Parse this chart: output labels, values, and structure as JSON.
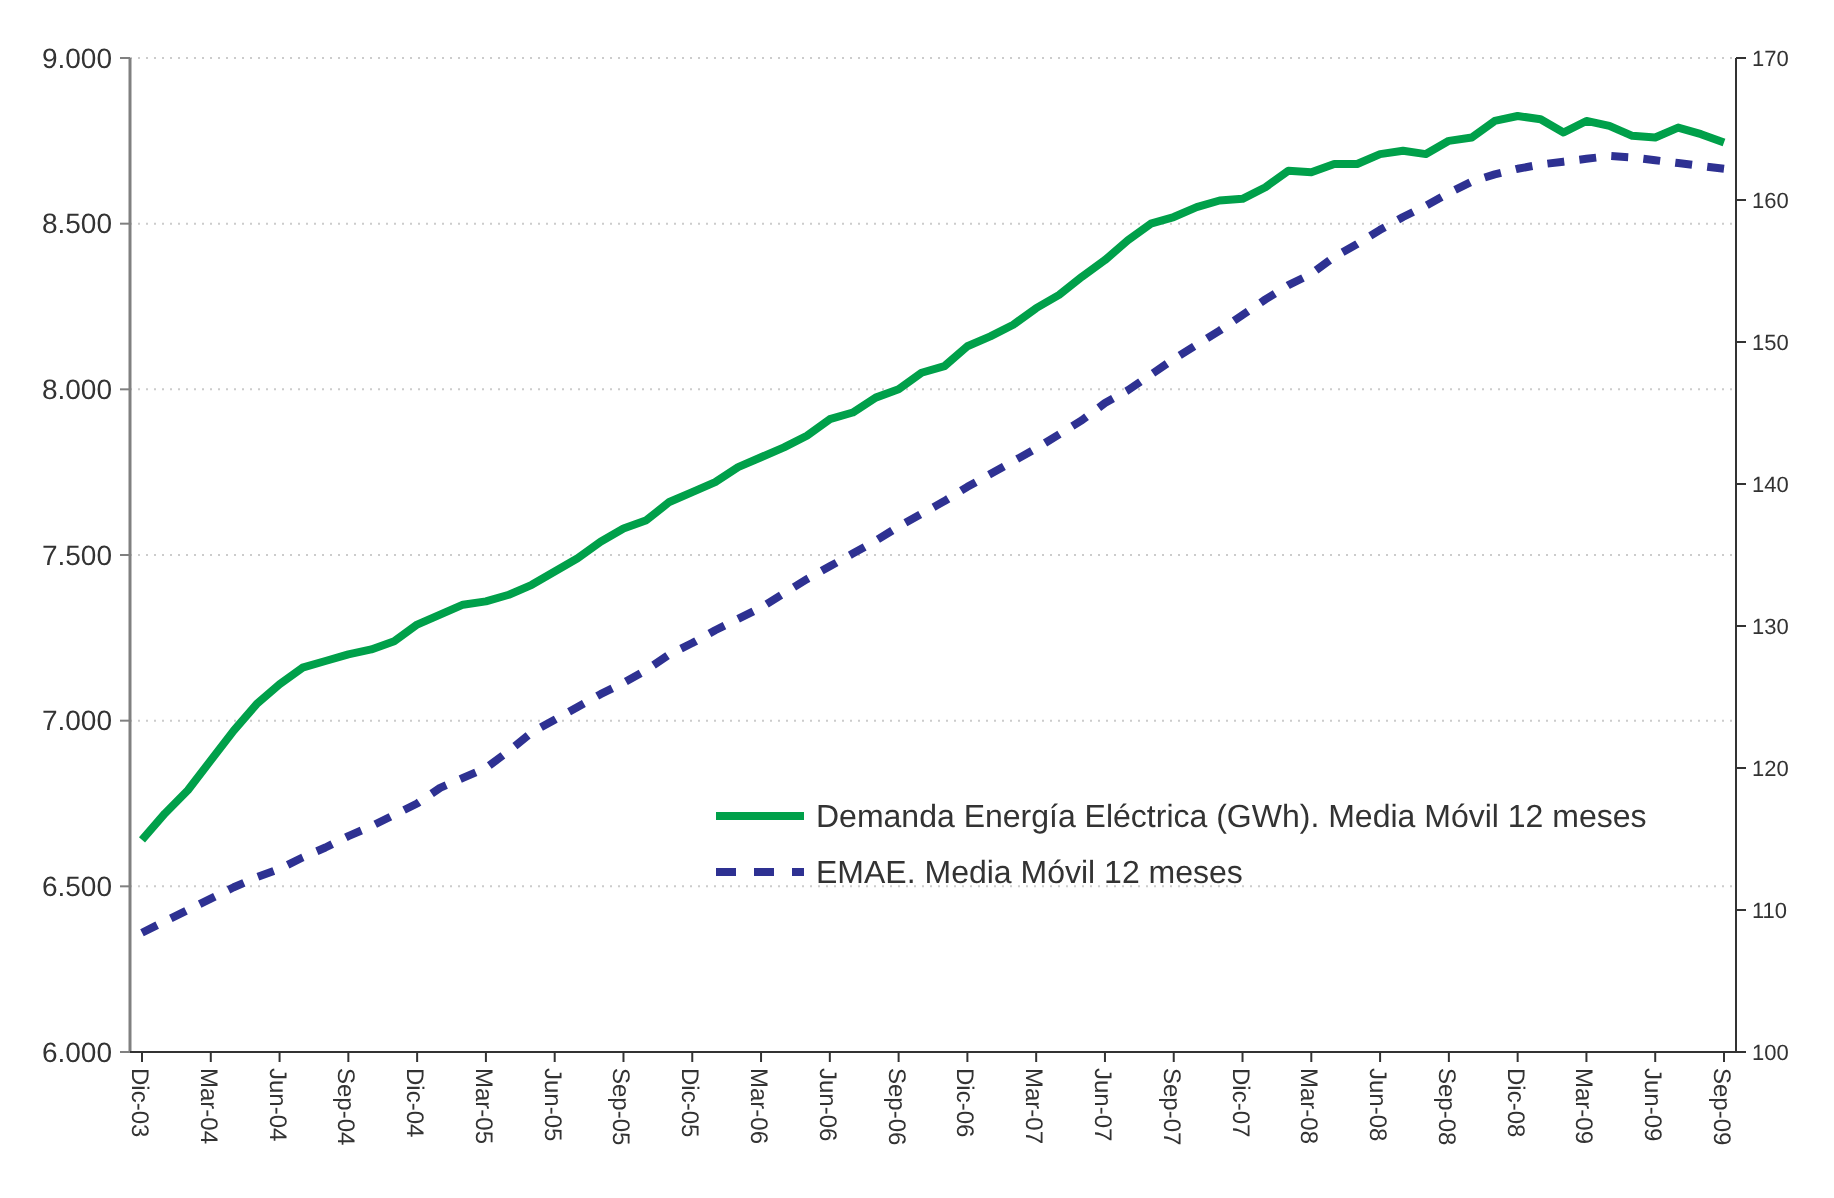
{
  "chart_data": {
    "type": "line",
    "categories": [
      "Dic-03",
      null,
      null,
      "Mar-04",
      null,
      null,
      "Jun-04",
      null,
      null,
      "Sep-04",
      null,
      null,
      "Dic-04",
      null,
      null,
      "Mar-05",
      null,
      null,
      "Jun-05",
      null,
      null,
      "Sep-05",
      null,
      null,
      "Dic-05",
      null,
      null,
      "Mar-06",
      null,
      null,
      "Jun-06",
      null,
      null,
      "Sep-06",
      null,
      null,
      "Dic-06",
      null,
      null,
      "Mar-07",
      null,
      null,
      "Jun-07",
      null,
      null,
      "Sep-07",
      null,
      null,
      "Dic-07",
      null,
      null,
      "Mar-08",
      null,
      null,
      "Jun-08",
      null,
      null,
      "Sep-08",
      null,
      null,
      "Dic-08",
      null,
      null,
      "Mar-09",
      null,
      null,
      "Jun-09",
      null,
      null,
      "Sep-09"
    ],
    "series": [
      {
        "name": "Demanda Energía Eléctrica (GWh). Media Móvil 12 meses",
        "color": "#00a04a",
        "line_style": "solid",
        "values": [
          6640,
          6720,
          6790,
          6880,
          6970,
          7050,
          7110,
          7160,
          7180,
          7200,
          7215,
          7240,
          7290,
          7320,
          7350,
          7360,
          7380,
          7410,
          7450,
          7490,
          7540,
          7580,
          7605,
          7660,
          7690,
          7720,
          7765,
          7795,
          7825,
          7860,
          7910,
          7930,
          7975,
          8000,
          8050,
          8070,
          8130,
          8160,
          8195,
          8245,
          8285,
          8340,
          8390,
          8450,
          8500,
          8520,
          8550,
          8570,
          8575,
          8610,
          8660,
          8655,
          8680,
          8680,
          8710,
          8720,
          8710,
          8750,
          8760,
          8810,
          8825,
          8815,
          8775,
          8810,
          8795,
          8765,
          8760,
          8790,
          8770,
          8745
        ]
      },
      {
        "name": "EMAE. Media Móvil 12 meses",
        "color": "#2e3192",
        "line_style": "dashed",
        "axis": "y2",
        "values": [
          108.4,
          109.2,
          110.0,
          110.8,
          111.6,
          112.3,
          112.9,
          113.7,
          114.4,
          115.2,
          115.9,
          116.7,
          117.5,
          118.6,
          119.3,
          120.0,
          121.2,
          122.5,
          123.4,
          124.3,
          125.2,
          126.0,
          126.9,
          128.0,
          128.8,
          129.7,
          130.5,
          131.3,
          132.3,
          133.3,
          134.2,
          135.1,
          136.0,
          137.0,
          137.9,
          138.8,
          139.8,
          140.7,
          141.6,
          142.5,
          143.5,
          144.5,
          145.7,
          146.6,
          147.7,
          148.8,
          149.8,
          150.8,
          151.9,
          153.0,
          154.0,
          154.8,
          156.0,
          156.9,
          157.9,
          158.8,
          159.6,
          160.5,
          161.3,
          161.8,
          162.2,
          162.5,
          162.7,
          162.9,
          163.1,
          163.0,
          162.8,
          162.6,
          162.4,
          162.2
        ]
      }
    ],
    "ylim": [
      6000,
      9000
    ],
    "yticks": [
      {
        "value": 6000,
        "label": "6.000"
      },
      {
        "value": 6500,
        "label": "6.500"
      },
      {
        "value": 7000,
        "label": "7.000"
      },
      {
        "value": 7500,
        "label": "7.500"
      },
      {
        "value": 8000,
        "label": "8.000"
      },
      {
        "value": 8500,
        "label": "8.500"
      },
      {
        "value": 9000,
        "label": "9.000"
      }
    ],
    "y2lim": [
      100,
      170
    ],
    "y2ticks": [
      100,
      110,
      120,
      130,
      140,
      150,
      160,
      170
    ],
    "grid": "y",
    "legend": "right"
  }
}
